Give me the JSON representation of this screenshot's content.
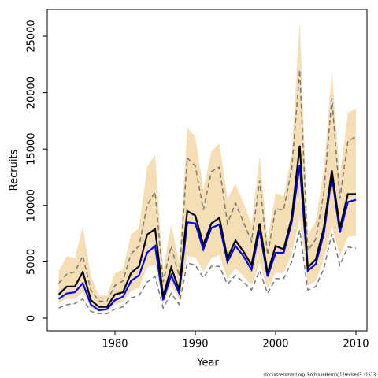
{
  "chart_data": {
    "type": "line",
    "x_label": "Year",
    "y_label": "Recruits",
    "source": "stockassessment.org, BothnianHerring12revised3, r1613",
    "x": [
      1973,
      1974,
      1975,
      1976,
      1977,
      1978,
      1979,
      1980,
      1981,
      1982,
      1983,
      1984,
      1985,
      1986,
      1987,
      1988,
      1989,
      1990,
      1991,
      1992,
      1993,
      1994,
      1995,
      1996,
      1997,
      1998,
      1999,
      2000,
      2001,
      2002,
      2003,
      2004,
      2005,
      2006,
      2007,
      2008,
      2009,
      2010
    ],
    "band": {
      "color": "#f5deb3",
      "upper": [
        4200,
        5500,
        5300,
        8100,
        3700,
        2000,
        2000,
        4000,
        4300,
        7400,
        8000,
        13400,
        14500,
        4200,
        8300,
        4900,
        16900,
        16100,
        11400,
        14800,
        15500,
        10600,
        11900,
        10200,
        8300,
        14400,
        7000,
        11100,
        10800,
        14500,
        26300,
        7400,
        8600,
        13100,
        21900,
        12600,
        18200,
        18600
      ],
      "lower": [
        1400,
        1700,
        1700,
        2300,
        900,
        600,
        600,
        1200,
        1400,
        2400,
        2700,
        4500,
        4800,
        1200,
        3000,
        1600,
        5500,
        5400,
        4100,
        5300,
        5600,
        3500,
        4400,
        3700,
        2900,
        4900,
        2600,
        4000,
        4000,
        5700,
        8900,
        2900,
        3300,
        5200,
        8200,
        5500,
        7200,
        7300
      ]
    },
    "series": [
      {
        "color": "#777777",
        "dash": true,
        "values": [
          3100,
          3900,
          4100,
          5500,
          2500,
          1500,
          1500,
          2900,
          3300,
          5700,
          6400,
          10000,
          11200,
          3200,
          6400,
          3700,
          14200,
          13500,
          9600,
          13000,
          13400,
          8400,
          10200,
          8500,
          6800,
          12200,
          5600,
          9700,
          9600,
          13200,
          22000,
          6000,
          7000,
          11100,
          19500,
          10600,
          15700,
          16100
        ]
      },
      {
        "color": "#777777",
        "dash": true,
        "values": [
          900,
          1200,
          1300,
          1700,
          600,
          400,
          400,
          800,
          1000,
          1800,
          2000,
          3200,
          3700,
          900,
          2200,
          1200,
          4900,
          4700,
          3600,
          4600,
          4600,
          3000,
          3800,
          3200,
          2500,
          4200,
          2200,
          3500,
          3500,
          5000,
          7800,
          2500,
          2800,
          4400,
          7500,
          4700,
          6300,
          6200
        ]
      },
      {
        "color": "#0000ff",
        "dash": false,
        "values": [
          1700,
          2200,
          2300,
          3100,
          1200,
          700,
          800,
          1600,
          1900,
          3300,
          3800,
          5800,
          6400,
          1600,
          3800,
          2200,
          8500,
          8400,
          6100,
          8000,
          8300,
          5000,
          6400,
          5500,
          4300,
          7800,
          3700,
          5800,
          5800,
          8500,
          13600,
          4200,
          4800,
          7500,
          12600,
          7600,
          10300,
          10500
        ]
      },
      {
        "color": "#000000",
        "dash": false,
        "values": [
          2100,
          2800,
          2800,
          4100,
          1600,
          1000,
          1000,
          2100,
          2300,
          4000,
          4600,
          7400,
          7900,
          1900,
          4500,
          2500,
          9500,
          9100,
          6500,
          8400,
          8900,
          5300,
          6900,
          5900,
          4700,
          8400,
          4000,
          6400,
          6100,
          8900,
          15300,
          4500,
          5200,
          8000,
          13100,
          8000,
          11000,
          11000
        ]
      }
    ],
    "xlim": [
      1971.57,
      2011.37
    ],
    "xticks": [
      1980,
      1990,
      2000,
      2010
    ],
    "ylim": [
      -1117,
      27374
    ],
    "yticks": [
      0,
      5000,
      10000,
      15000,
      20000,
      25000
    ]
  }
}
